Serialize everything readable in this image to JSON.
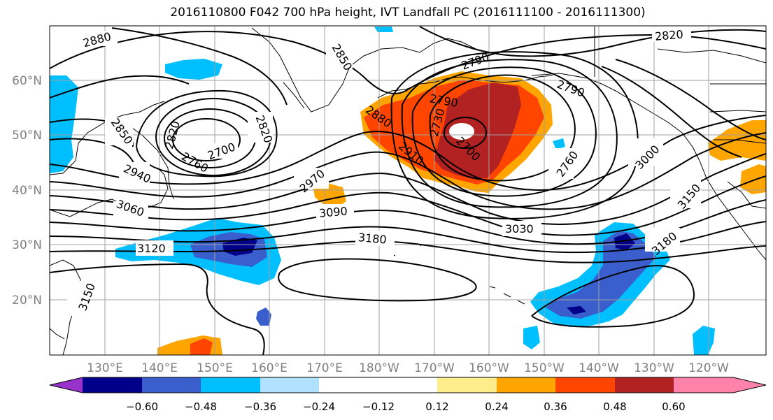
{
  "title": "2016110800 F042 700 hPa height, IVT Landfall PC (2016111100 - 2016111300)",
  "map": {
    "lat_ticks": [
      "60°N",
      "50°N",
      "40°N",
      "30°N",
      "20°N"
    ],
    "lon_ticks": [
      "130°E",
      "140°E",
      "150°E",
      "160°E",
      "170°E",
      "180°W",
      "170°W",
      "160°W",
      "150°W",
      "140°W",
      "130°W",
      "120°W"
    ],
    "contour_labels": [
      "2880",
      "2850",
      "2850",
      "2820",
      "2790",
      "2700",
      "2760",
      "2820",
      "2940",
      "3060",
      "2970",
      "3090",
      "3180",
      "3150",
      "3120",
      "2880",
      "2910",
      "2730",
      "2700",
      "3030",
      "2760",
      "3000",
      "3150",
      "3180",
      "2790",
      "2820",
      "2790"
    ],
    "colors": {
      "land_outline": "#000000",
      "grid": "#a0a0a0",
      "tick_label": "#808080"
    }
  },
  "colorbar": {
    "tick_labels": [
      "−0.60",
      "−0.48",
      "−0.36",
      "−0.24",
      "−0.12",
      "0.12",
      "0.24",
      "0.36",
      "0.48",
      "0.60"
    ],
    "colors": [
      "#9932cc",
      "#00008b",
      "#3a5fcd",
      "#00bfff",
      "#b0e2ff",
      "#ffffff",
      "#ffec8b",
      "#ffa500",
      "#ff4500",
      "#b22222",
      "#ff82ab"
    ]
  }
}
